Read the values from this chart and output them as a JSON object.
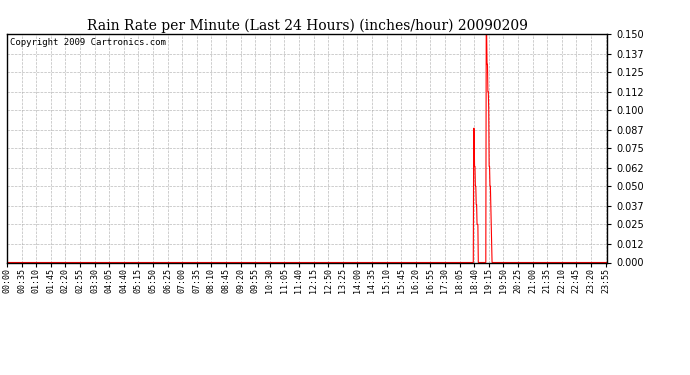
{
  "title": "Rain Rate per Minute (Last 24 Hours) (inches/hour) 20090209",
  "copyright_text": "Copyright 2009 Cartronics.com",
  "ylim": [
    0.0,
    0.15
  ],
  "yticks": [
    0.0,
    0.012,
    0.025,
    0.037,
    0.05,
    0.062,
    0.075,
    0.087,
    0.1,
    0.112,
    0.125,
    0.137,
    0.15
  ],
  "line_color": "#ff0000",
  "background_color": "#ffffff",
  "grid_color": "#aaaaaa",
  "title_fontsize": 10,
  "copyright_fontsize": 6.5,
  "tick_fontsize": 6,
  "ytick_fontsize": 7,
  "xtick_interval": 35,
  "total_minutes": 1440,
  "spike_data": [
    [
      1118,
      0.0
    ],
    [
      1119,
      0.088
    ],
    [
      1120,
      0.088
    ],
    [
      1121,
      0.063
    ],
    [
      1122,
      0.063
    ],
    [
      1123,
      0.05
    ],
    [
      1124,
      0.05
    ],
    [
      1125,
      0.038
    ],
    [
      1126,
      0.038
    ],
    [
      1127,
      0.025
    ],
    [
      1128,
      0.025
    ],
    [
      1129,
      0.025
    ],
    [
      1130,
      0.0
    ],
    [
      1148,
      0.0
    ],
    [
      1149,
      0.15
    ],
    [
      1150,
      0.15
    ],
    [
      1151,
      0.13
    ],
    [
      1152,
      0.13
    ],
    [
      1153,
      0.112
    ],
    [
      1154,
      0.112
    ],
    [
      1155,
      0.1
    ],
    [
      1156,
      0.063
    ],
    [
      1157,
      0.063
    ],
    [
      1158,
      0.05
    ],
    [
      1159,
      0.05
    ],
    [
      1160,
      0.038
    ],
    [
      1161,
      0.025
    ],
    [
      1162,
      0.012
    ],
    [
      1163,
      0.0
    ]
  ]
}
